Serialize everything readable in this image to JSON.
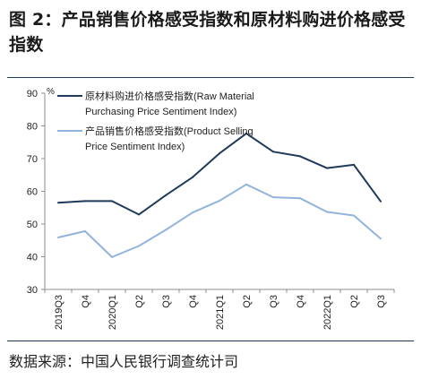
{
  "figure": {
    "title": "图 2：产品销售价格感受指数和原材料购进价格感受指数",
    "source": "数据来源：中国人民银行调查统计司"
  },
  "chart_data": {
    "type": "line",
    "title": "图 2：产品销售价格感受指数和原材料购进价格感受指数",
    "xlabel": "",
    "ylabel": "%",
    "categories": [
      "2019Q3",
      "Q4",
      "2020Q1",
      "Q2",
      "Q3",
      "Q4",
      "2021Q1",
      "Q2",
      "Q3",
      "Q4",
      "2022Q1",
      "Q2",
      "Q3"
    ],
    "ylim": [
      30,
      90
    ],
    "yticks": [
      "90",
      "80",
      "70",
      "60",
      "50",
      "40",
      "30"
    ],
    "grid": false,
    "legend_position": "top-left",
    "series": [
      {
        "legend_line1": "原材料购进价格感受指数(Raw  Material",
        "legend_line2": "Purchasing Price Sentiment Index)",
        "color": "#1f3a5a",
        "values": [
          56.5,
          57.0,
          57.0,
          52.9,
          58.8,
          64.3,
          71.6,
          77.7,
          72.1,
          70.7,
          67.1,
          68.1,
          56.9
        ]
      },
      {
        "legend_line1": "产品销售价格感受指数(Product  Selling",
        "legend_line2": "Price Sentiment Index)",
        "color": "#92b4dc",
        "values": [
          45.9,
          47.8,
          39.9,
          43.3,
          48.2,
          53.5,
          57.1,
          62.1,
          58.2,
          57.9,
          53.7,
          52.6,
          45.5
        ]
      }
    ]
  }
}
